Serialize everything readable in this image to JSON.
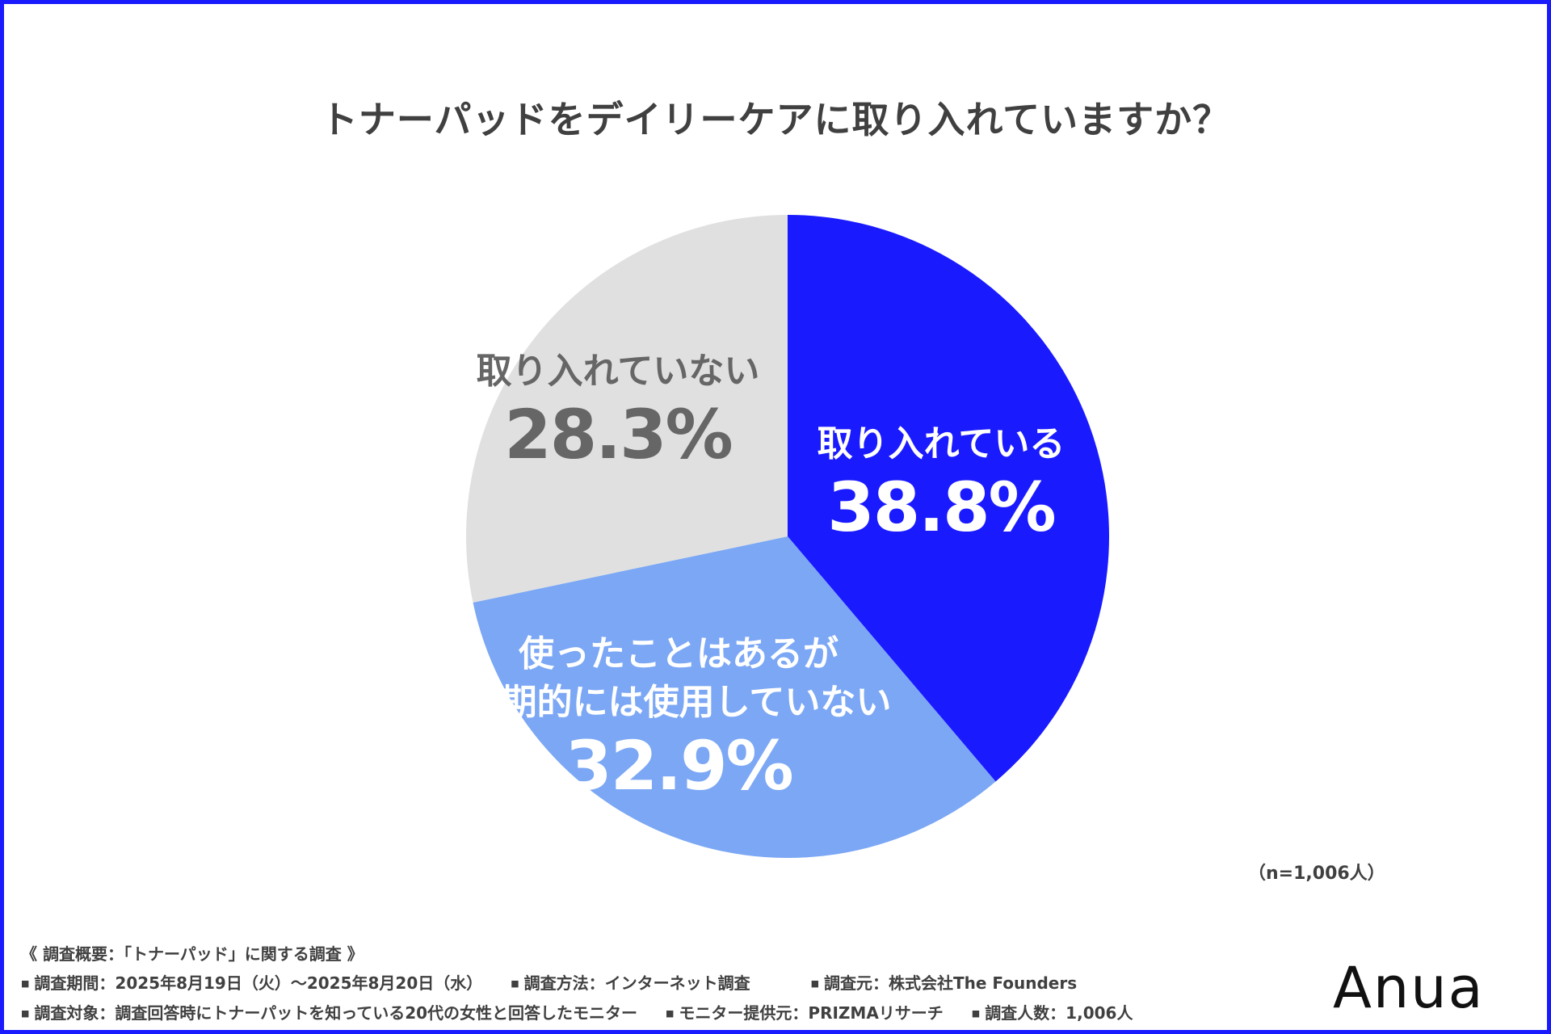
{
  "chart_data": {
    "type": "pie",
    "title": "トナーパッドをデイリーケアに取り入れていますか？",
    "slices": [
      {
        "label": "取り入れている",
        "value": 38.8,
        "display": "38.8%",
        "color": "#1a1aff",
        "text_color": "#ffffff"
      },
      {
        "label_lines": [
          "使ったことはあるが",
          "定期的には使用していない"
        ],
        "value": 32.9,
        "display": "32.9%",
        "color": "#7ba7f5",
        "text_color": "#ffffff"
      },
      {
        "label": "取り入れていない",
        "value": 28.3,
        "display": "28.3%",
        "color": "#e0e0e0",
        "text_color": "#666666"
      }
    ],
    "note": "（n=1,006人）"
  },
  "footer": {
    "heading": "《 調査概要：「トナーパッド」に関する調査 》",
    "row1": [
      "調査期間：2025年8月19日（火）～2025年8月20日（水）",
      "調査方法：インターネット調査",
      "調査元：株式会社The Founders"
    ],
    "row2": [
      "調査対象：調査回答時にトナーパットを知っている20代の女性と回答したモニター",
      "モニター提供元：PRIZMAリサーチ",
      "調査人数：1,006人"
    ]
  },
  "logo": "Anua"
}
